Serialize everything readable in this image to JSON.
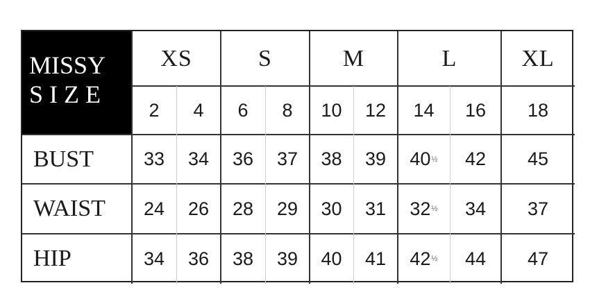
{
  "header": {
    "line1": "MISSY",
    "line2": "S I Z E"
  },
  "size_groups": [
    {
      "label": "XS",
      "span": 2
    },
    {
      "label": "S",
      "span": 2
    },
    {
      "label": "M",
      "span": 2
    },
    {
      "label": "L",
      "span": 2
    },
    {
      "label": "XL",
      "span": 1
    }
  ],
  "sizes": [
    "2",
    "4",
    "6",
    "8",
    "10",
    "12",
    "14",
    "16",
    "18"
  ],
  "rows": [
    {
      "label": "BUST",
      "values": [
        {
          "v": "33"
        },
        {
          "v": "34"
        },
        {
          "v": "36"
        },
        {
          "v": "37"
        },
        {
          "v": "38"
        },
        {
          "v": "39"
        },
        {
          "v": "40",
          "frac": "½"
        },
        {
          "v": "42"
        },
        {
          "v": "45"
        }
      ]
    },
    {
      "label": "WAIST",
      "values": [
        {
          "v": "24"
        },
        {
          "v": "26"
        },
        {
          "v": "28"
        },
        {
          "v": "29"
        },
        {
          "v": "30"
        },
        {
          "v": "31"
        },
        {
          "v": "32",
          "frac": "½"
        },
        {
          "v": "34"
        },
        {
          "v": "37"
        }
      ]
    },
    {
      "label": "HIP",
      "values": [
        {
          "v": "34"
        },
        {
          "v": "36"
        },
        {
          "v": "38"
        },
        {
          "v": "39"
        },
        {
          "v": "40"
        },
        {
          "v": "41"
        },
        {
          "v": "42",
          "frac": "½"
        },
        {
          "v": "44"
        },
        {
          "v": "47"
        }
      ]
    }
  ]
}
